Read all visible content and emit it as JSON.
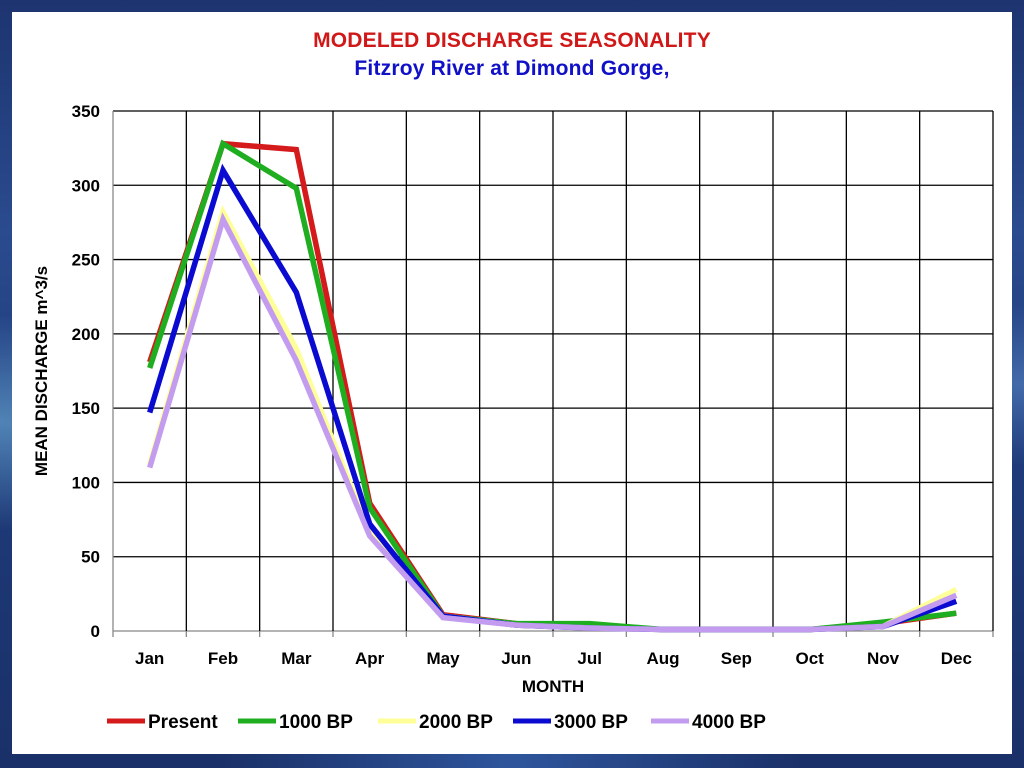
{
  "slide": {
    "title": "MODELED DISCHARGE SEASONALITY",
    "subtitle": "Fitzroy River at Dimond Gorge,"
  },
  "chart_data": {
    "type": "line",
    "title": "MODELED DISCHARGE SEASONALITY",
    "subtitle": "Fitzroy River at Dimond Gorge,",
    "xlabel": "MONTH",
    "ylabel": "MEAN DISCHARGE m^3/s",
    "categories": [
      "Jan",
      "Feb",
      "Mar",
      "Apr",
      "May",
      "Jun",
      "Jul",
      "Aug",
      "Sep",
      "Oct",
      "Nov",
      "Dec"
    ],
    "ylim": [
      0,
      350
    ],
    "yticks": [
      0,
      50,
      100,
      150,
      200,
      250,
      300,
      350
    ],
    "grid": true,
    "legend_position": "bottom",
    "series": [
      {
        "name": "Present",
        "color": "#d41a1a",
        "values": [
          181,
          328,
          324,
          86,
          11,
          5,
          3,
          1,
          1,
          1,
          5,
          12
        ]
      },
      {
        "name": "1000 BP",
        "color": "#1fae1f",
        "values": [
          177,
          328,
          298,
          83,
          10,
          5,
          5,
          1,
          1,
          1,
          6,
          12
        ]
      },
      {
        "name": "2000 BP",
        "color": "#ffff99",
        "values": [
          112,
          282,
          190,
          66,
          10,
          4,
          2,
          1,
          1,
          1,
          3,
          28
        ]
      },
      {
        "name": "3000 BP",
        "color": "#0a0ad0",
        "values": [
          147,
          310,
          228,
          72,
          10,
          4,
          2,
          1,
          1,
          1,
          3,
          20
        ]
      },
      {
        "name": "4000 BP",
        "color": "#c39cf0",
        "values": [
          110,
          277,
          182,
          64,
          9,
          4,
          2,
          1,
          1,
          1,
          3,
          24
        ]
      }
    ]
  }
}
